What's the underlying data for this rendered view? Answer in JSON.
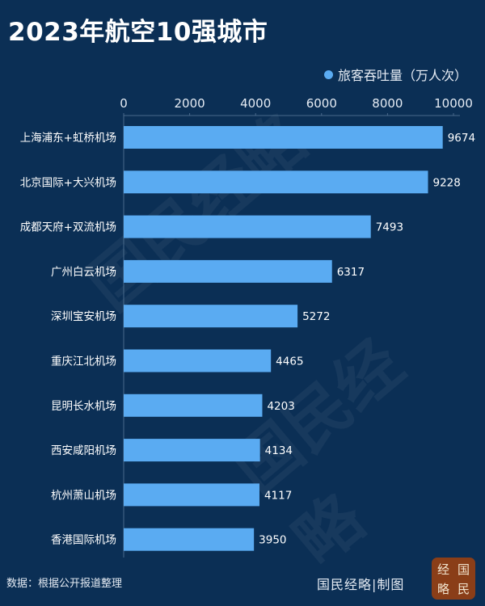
{
  "title": "2023年航空10强城市",
  "chart_data": {
    "type": "bar",
    "orientation": "horizontal",
    "title": "2023年航空10强城市",
    "categories": [
      "上海浦东+虹桥机场",
      "北京国际+大兴机场",
      "成都天府+双流机场",
      "广州白云机场",
      "深圳宝安机场",
      "重庆江北机场",
      "昆明长水机场",
      "西安咸阳机场",
      "杭州萧山机场",
      "香港国际机场"
    ],
    "series": [
      {
        "name": "旅客吞吐量（万人次）",
        "values": [
          9674,
          9228,
          7493,
          6317,
          5272,
          4465,
          4203,
          4134,
          4117,
          3950
        ]
      }
    ],
    "xlim": [
      0,
      10000
    ],
    "xticks": [
      "0",
      "2000",
      "4000",
      "6000",
      "8000",
      "10000"
    ],
    "legend_position": "top-right",
    "grid": false,
    "colors": {
      "bar": "#5aabf2",
      "background": "#0b2f55"
    }
  },
  "footer": {
    "source": "数据：根据公开报道整理",
    "credit": "国民经略|制图",
    "seal": [
      "经",
      "国",
      "略",
      "民"
    ]
  },
  "watermark": "国民经略"
}
